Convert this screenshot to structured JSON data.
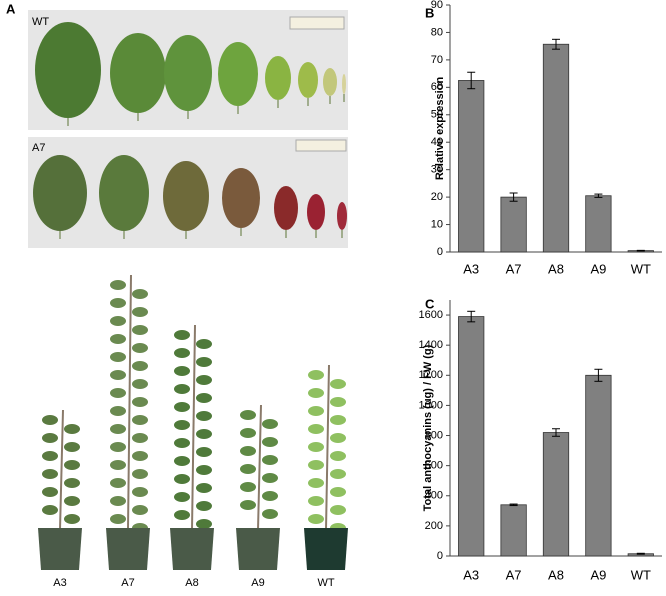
{
  "panel_labels": [
    "A",
    "B",
    "C"
  ],
  "leaf_rows": [
    "WT",
    "A7"
  ],
  "plant_labels": [
    "A3",
    "A7",
    "A8",
    "A9",
    "WT"
  ],
  "chart_data": [
    {
      "type": "bar",
      "ylabel": "Relative expression",
      "categories": [
        "A3",
        "A7",
        "A8",
        "A9",
        "WT"
      ],
      "values": [
        62.5,
        20,
        75.7,
        20.5,
        0.5
      ],
      "errors": [
        3,
        1.5,
        1.8,
        0.6,
        0.1
      ],
      "color": "#808080",
      "ylim": [
        0,
        90
      ],
      "yticks": [
        0,
        10,
        20,
        30,
        40,
        50,
        60,
        70,
        80,
        90
      ]
    },
    {
      "type": "bar",
      "ylabel": "Total anthocyanins  (ug) / FW (g)",
      "categories": [
        "A3",
        "A7",
        "A8",
        "A9",
        "WT"
      ],
      "values": [
        1590,
        340,
        820,
        1200,
        15
      ],
      "errors": [
        35,
        5,
        25,
        40,
        3
      ],
      "color": "#808080",
      "ylim": [
        0,
        1700
      ],
      "yticks": [
        0,
        200,
        400,
        600,
        800,
        1000,
        1200,
        1400,
        1600
      ]
    }
  ]
}
